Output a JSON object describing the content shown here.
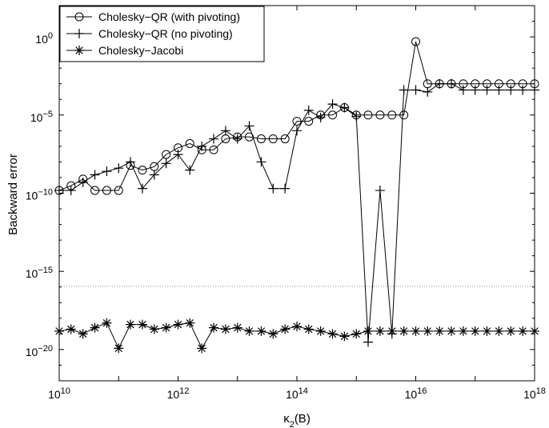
{
  "chart_data": {
    "type": "line",
    "title": "",
    "xlabel": "κ_2(B)",
    "ylabel": "Backward error",
    "xscale": "log",
    "yscale": "log",
    "xlim": [
      10000000000.0,
      1e+18
    ],
    "ylim": [
      1e-22,
      100.0
    ],
    "x_ticks": [
      {
        "value": 10000000000.0,
        "base": "10",
        "exp": "10"
      },
      {
        "value": 1000000000000.0,
        "base": "10",
        "exp": "12"
      },
      {
        "value": 100000000000000.0,
        "base": "10",
        "exp": "14"
      },
      {
        "value": 1e+16,
        "base": "10",
        "exp": "16"
      },
      {
        "value": 1e+18,
        "base": "10",
        "exp": "18"
      }
    ],
    "y_ticks": [
      {
        "value": 1e-20,
        "base": "10",
        "exp": "−20"
      },
      {
        "value": 1e-15,
        "base": "10",
        "exp": "−15"
      },
      {
        "value": 1e-10,
        "base": "10",
        "exp": "−10"
      },
      {
        "value": 1e-05,
        "base": "10",
        "exp": "−5"
      },
      {
        "value": 1,
        "base": "10",
        "exp": "0"
      }
    ],
    "grid": false,
    "legend_position": "top-left",
    "reference_line": {
      "y": 1.1e-16,
      "style": "dotted",
      "color": "#888888"
    },
    "series": [
      {
        "name": "Cholesky−QR (with pivoting)",
        "marker": "circle",
        "color": "#000000",
        "x": [
          10000000000.0,
          15800000000.0,
          25100000000.0,
          39800000000.0,
          63100000000.0,
          100000000000.0,
          158000000000.0,
          251000000000.0,
          398000000000.0,
          631000000000.0,
          1000000000000.0,
          1580000000000.0,
          2510000000000.0,
          3980000000000.0,
          6310000000000.0,
          10000000000000.0,
          15800000000000.0,
          25100000000000.0,
          39800000000000.0,
          63100000000000.0,
          100000000000000.0,
          158000000000000.0,
          251000000000000.0,
          398000000000000.0,
          631000000000000.0,
          1000000000000000.0,
          1580000000000000.0,
          2510000000000000.0,
          3980000000000000.0,
          6310000000000000.0,
          1e+16,
          1.58e+16,
          2.51e+16,
          3.98e+16,
          6.31e+16,
          1e+17,
          1.58e+17,
          2.51e+17,
          3.98e+17,
          6.31e+17,
          1e+18
        ],
        "y": [
          1.5e-10,
          3e-10,
          8e-10,
          1.5e-10,
          1.5e-10,
          1.5e-10,
          6e-09,
          3e-09,
          5e-09,
          3e-08,
          8e-08,
          1.5e-07,
          6e-08,
          6e-08,
          3e-07,
          4e-07,
          4e-07,
          3e-07,
          3e-07,
          3e-07,
          4e-06,
          4e-06,
          1e-05,
          1e-05,
          3e-05,
          1e-05,
          1e-05,
          1e-05,
          1e-05,
          1e-05,
          0.5,
          0.001,
          0.001,
          0.001,
          0.001,
          0.001,
          0.001,
          0.001,
          0.001,
          0.001,
          0.001
        ]
      },
      {
        "name": "Cholesky−QR (no pivoting)",
        "marker": "plus",
        "color": "#000000",
        "x": [
          10000000000.0,
          15800000000.0,
          25100000000.0,
          39800000000.0,
          63100000000.0,
          100000000000.0,
          158000000000.0,
          251000000000.0,
          398000000000.0,
          631000000000.0,
          1000000000000.0,
          1580000000000.0,
          2510000000000.0,
          3980000000000.0,
          6310000000000.0,
          10000000000000.0,
          15800000000000.0,
          25100000000000.0,
          39800000000000.0,
          63100000000000.0,
          100000000000000.0,
          158000000000000.0,
          251000000000000.0,
          398000000000000.0,
          631000000000000.0,
          1000000000000000.0,
          1580000000000000.0,
          2510000000000000.0,
          3980000000000000.0,
          6310000000000000.0,
          1e+16,
          1.58e+16,
          2.51e+16,
          3.98e+16,
          6.31e+16,
          1e+17,
          1.58e+17,
          2.51e+17,
          3.98e+17,
          6.31e+17,
          1e+18
        ],
        "y": [
          1.5e-10,
          1.5e-10,
          5e-10,
          1.5e-09,
          2.5e-09,
          4e-09,
          1e-08,
          2e-10,
          1.5e-09,
          8e-09,
          3e-08,
          3e-09,
          1e-07,
          3e-07,
          1e-06,
          3e-07,
          2e-06,
          1e-08,
          2e-10,
          2e-10,
          1e-06,
          2e-05,
          7e-06,
          5e-05,
          3e-05,
          8e-06,
          3e-20,
          1.5e-10,
          1e-19,
          0.0004,
          0.0004,
          0.0003,
          0.001,
          0.001,
          0.0004,
          0.0004,
          0.0004,
          0.0004,
          0.0004,
          0.0004,
          0.0004
        ]
      },
      {
        "name": "Cholesky−Jacobi",
        "marker": "star",
        "color": "#000000",
        "x": [
          10000000000.0,
          15800000000.0,
          25100000000.0,
          39800000000.0,
          63100000000.0,
          100000000000.0,
          158000000000.0,
          251000000000.0,
          398000000000.0,
          631000000000.0,
          1000000000000.0,
          1580000000000.0,
          2510000000000.0,
          3980000000000.0,
          6310000000000.0,
          10000000000000.0,
          15800000000000.0,
          25100000000000.0,
          39800000000000.0,
          63100000000000.0,
          100000000000000.0,
          158000000000000.0,
          251000000000000.0,
          398000000000000.0,
          631000000000000.0,
          1000000000000000.0,
          1580000000000000.0,
          2510000000000000.0,
          3980000000000000.0,
          6310000000000000.0,
          1e+16,
          1.58e+16,
          2.51e+16,
          3.98e+16,
          6.31e+16,
          1e+17,
          1.58e+17,
          2.51e+17,
          3.98e+17,
          6.31e+17,
          1e+18
        ],
        "y": [
          1.5e-19,
          2e-19,
          1e-19,
          2.5e-19,
          5e-19,
          1.2e-20,
          4e-19,
          4e-19,
          2e-19,
          2.5e-19,
          4e-19,
          5e-19,
          1.2e-20,
          2.5e-19,
          2e-19,
          2.5e-19,
          1.5e-19,
          1.5e-19,
          1e-19,
          2e-19,
          3e-19,
          2e-19,
          1.5e-19,
          1e-19,
          7e-20,
          1e-19,
          1.5e-19,
          1.5e-19,
          1.5e-19,
          1.5e-19,
          1.5e-19,
          1.5e-19,
          1.5e-19,
          1.5e-19,
          1.5e-19,
          1.5e-19,
          1.5e-19,
          1.5e-19,
          1.5e-19,
          1.5e-19,
          1.5e-19
        ]
      }
    ]
  }
}
